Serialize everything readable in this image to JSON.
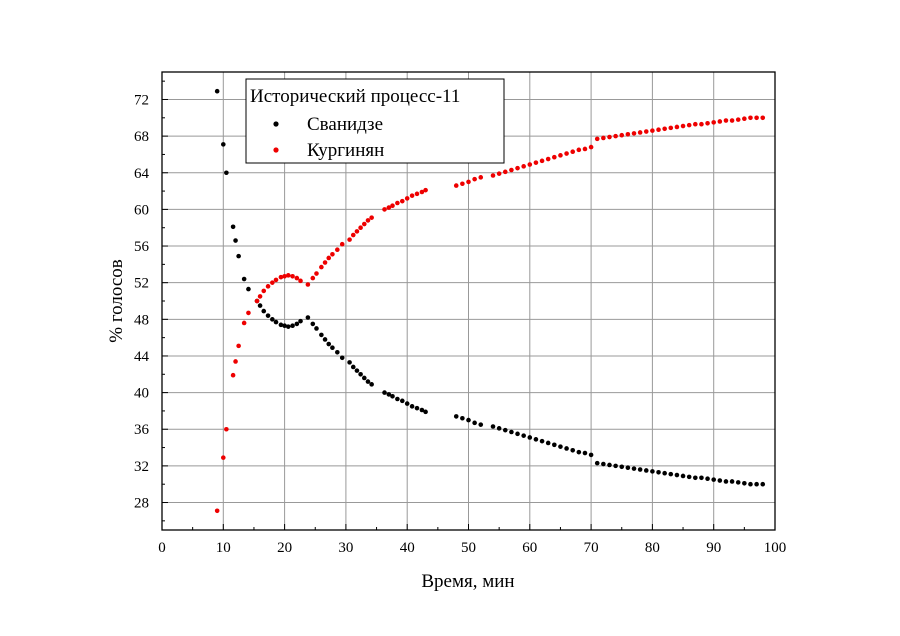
{
  "chart_data": {
    "type": "scatter",
    "legend_title": "Исторический процесс-11",
    "legend_placement": "top-left",
    "xlabel": "Время, мин",
    "ylabel": "% голосов",
    "xlim": [
      0,
      100
    ],
    "ylim": [
      25,
      75
    ],
    "x_ticks": [
      0,
      10,
      20,
      30,
      40,
      50,
      60,
      70,
      80,
      90,
      100
    ],
    "y_ticks": [
      28,
      32,
      36,
      40,
      44,
      48,
      52,
      56,
      60,
      64,
      68,
      72
    ],
    "grid": true,
    "series": [
      {
        "name": "Сванидзе",
        "color": "#000000",
        "points": [
          [
            9.0,
            72.9
          ],
          [
            10.0,
            67.1
          ],
          [
            10.5,
            64.0
          ],
          [
            11.6,
            58.1
          ],
          [
            12.0,
            56.6
          ],
          [
            12.5,
            54.9
          ],
          [
            13.4,
            52.4
          ],
          [
            14.1,
            51.3
          ],
          [
            15.5,
            50.0
          ],
          [
            16.0,
            49.5
          ],
          [
            16.6,
            48.9
          ],
          [
            17.3,
            48.4
          ],
          [
            18.0,
            48.0
          ],
          [
            18.6,
            47.7
          ],
          [
            19.4,
            47.4
          ],
          [
            20.0,
            47.3
          ],
          [
            20.6,
            47.2
          ],
          [
            21.3,
            47.3
          ],
          [
            22.0,
            47.5
          ],
          [
            22.6,
            47.8
          ],
          [
            23.8,
            48.2
          ],
          [
            24.6,
            47.5
          ],
          [
            25.2,
            47.0
          ],
          [
            26.0,
            46.3
          ],
          [
            26.6,
            45.8
          ],
          [
            27.2,
            45.3
          ],
          [
            27.8,
            44.9
          ],
          [
            28.6,
            44.4
          ],
          [
            29.4,
            43.8
          ],
          [
            30.6,
            43.3
          ],
          [
            31.2,
            42.8
          ],
          [
            31.8,
            42.4
          ],
          [
            32.4,
            42.0
          ],
          [
            33.0,
            41.6
          ],
          [
            33.6,
            41.2
          ],
          [
            34.2,
            40.9
          ],
          [
            36.3,
            40.0
          ],
          [
            37.0,
            39.8
          ],
          [
            37.6,
            39.6
          ],
          [
            38.4,
            39.3
          ],
          [
            39.2,
            39.1
          ],
          [
            40.0,
            38.8
          ],
          [
            40.8,
            38.5
          ],
          [
            41.6,
            38.3
          ],
          [
            42.4,
            38.1
          ],
          [
            43.0,
            37.9
          ],
          [
            48.0,
            37.4
          ],
          [
            49.0,
            37.2
          ],
          [
            50.0,
            37.0
          ],
          [
            51.0,
            36.7
          ],
          [
            52.0,
            36.5
          ],
          [
            54.0,
            36.3
          ],
          [
            55.0,
            36.1
          ],
          [
            56.0,
            35.9
          ],
          [
            57.0,
            35.7
          ],
          [
            58.0,
            35.5
          ],
          [
            59.0,
            35.3
          ],
          [
            60.0,
            35.1
          ],
          [
            61.0,
            34.9
          ],
          [
            62.0,
            34.7
          ],
          [
            63.0,
            34.5
          ],
          [
            64.0,
            34.3
          ],
          [
            65.0,
            34.1
          ],
          [
            66.0,
            33.9
          ],
          [
            67.0,
            33.7
          ],
          [
            68.0,
            33.5
          ],
          [
            69.0,
            33.4
          ],
          [
            70.0,
            33.2
          ],
          [
            71.0,
            32.3
          ],
          [
            72.0,
            32.2
          ],
          [
            73.0,
            32.1
          ],
          [
            74.0,
            32.0
          ],
          [
            75.0,
            31.9
          ],
          [
            76.0,
            31.8
          ],
          [
            77.0,
            31.7
          ],
          [
            78.0,
            31.6
          ],
          [
            79.0,
            31.5
          ],
          [
            80.0,
            31.4
          ],
          [
            81.0,
            31.3
          ],
          [
            82.0,
            31.2
          ],
          [
            83.0,
            31.1
          ],
          [
            84.0,
            31.0
          ],
          [
            85.0,
            30.9
          ],
          [
            86.0,
            30.8
          ],
          [
            87.0,
            30.7
          ],
          [
            88.0,
            30.7
          ],
          [
            89.0,
            30.6
          ],
          [
            90.0,
            30.5
          ],
          [
            91.0,
            30.4
          ],
          [
            92.0,
            30.3
          ],
          [
            93.0,
            30.3
          ],
          [
            94.0,
            30.2
          ],
          [
            95.0,
            30.1
          ],
          [
            96.0,
            30.0
          ],
          [
            97.0,
            30.0
          ],
          [
            98.0,
            30.0
          ]
        ]
      },
      {
        "name": "Кургинян",
        "color": "#ee0000",
        "points": [
          [
            9.0,
            27.1
          ],
          [
            10.0,
            32.9
          ],
          [
            10.5,
            36.0
          ],
          [
            11.6,
            41.9
          ],
          [
            12.0,
            43.4
          ],
          [
            12.5,
            45.1
          ],
          [
            13.4,
            47.6
          ],
          [
            14.1,
            48.7
          ],
          [
            15.5,
            50.0
          ],
          [
            16.0,
            50.5
          ],
          [
            16.6,
            51.1
          ],
          [
            17.3,
            51.6
          ],
          [
            18.0,
            52.0
          ],
          [
            18.6,
            52.3
          ],
          [
            19.4,
            52.6
          ],
          [
            20.0,
            52.7
          ],
          [
            20.6,
            52.8
          ],
          [
            21.3,
            52.7
          ],
          [
            22.0,
            52.5
          ],
          [
            22.6,
            52.2
          ],
          [
            23.8,
            51.8
          ],
          [
            24.6,
            52.5
          ],
          [
            25.2,
            53.0
          ],
          [
            26.0,
            53.7
          ],
          [
            26.6,
            54.2
          ],
          [
            27.2,
            54.7
          ],
          [
            27.8,
            55.1
          ],
          [
            28.6,
            55.6
          ],
          [
            29.4,
            56.2
          ],
          [
            30.6,
            56.7
          ],
          [
            31.2,
            57.2
          ],
          [
            31.8,
            57.6
          ],
          [
            32.4,
            58.0
          ],
          [
            33.0,
            58.4
          ],
          [
            33.6,
            58.8
          ],
          [
            34.2,
            59.1
          ],
          [
            36.3,
            60.0
          ],
          [
            37.0,
            60.2
          ],
          [
            37.6,
            60.4
          ],
          [
            38.4,
            60.7
          ],
          [
            39.2,
            60.9
          ],
          [
            40.0,
            61.2
          ],
          [
            40.8,
            61.5
          ],
          [
            41.6,
            61.7
          ],
          [
            42.4,
            61.9
          ],
          [
            43.0,
            62.1
          ],
          [
            48.0,
            62.6
          ],
          [
            49.0,
            62.8
          ],
          [
            50.0,
            63.0
          ],
          [
            51.0,
            63.3
          ],
          [
            52.0,
            63.5
          ],
          [
            54.0,
            63.7
          ],
          [
            55.0,
            63.9
          ],
          [
            56.0,
            64.1
          ],
          [
            57.0,
            64.3
          ],
          [
            58.0,
            64.5
          ],
          [
            59.0,
            64.7
          ],
          [
            60.0,
            64.9
          ],
          [
            61.0,
            65.1
          ],
          [
            62.0,
            65.3
          ],
          [
            63.0,
            65.5
          ],
          [
            64.0,
            65.7
          ],
          [
            65.0,
            65.9
          ],
          [
            66.0,
            66.1
          ],
          [
            67.0,
            66.3
          ],
          [
            68.0,
            66.5
          ],
          [
            69.0,
            66.6
          ],
          [
            70.0,
            66.8
          ],
          [
            71.0,
            67.7
          ],
          [
            72.0,
            67.8
          ],
          [
            73.0,
            67.9
          ],
          [
            74.0,
            68.0
          ],
          [
            75.0,
            68.1
          ],
          [
            76.0,
            68.2
          ],
          [
            77.0,
            68.3
          ],
          [
            78.0,
            68.4
          ],
          [
            79.0,
            68.5
          ],
          [
            80.0,
            68.6
          ],
          [
            81.0,
            68.7
          ],
          [
            82.0,
            68.8
          ],
          [
            83.0,
            68.9
          ],
          [
            84.0,
            69.0
          ],
          [
            85.0,
            69.1
          ],
          [
            86.0,
            69.2
          ],
          [
            87.0,
            69.3
          ],
          [
            88.0,
            69.3
          ],
          [
            89.0,
            69.4
          ],
          [
            90.0,
            69.5
          ],
          [
            91.0,
            69.6
          ],
          [
            92.0,
            69.7
          ],
          [
            93.0,
            69.7
          ],
          [
            94.0,
            69.8
          ],
          [
            95.0,
            69.9
          ],
          [
            96.0,
            70.0
          ],
          [
            97.0,
            70.0
          ],
          [
            98.0,
            70.0
          ]
        ]
      }
    ]
  }
}
